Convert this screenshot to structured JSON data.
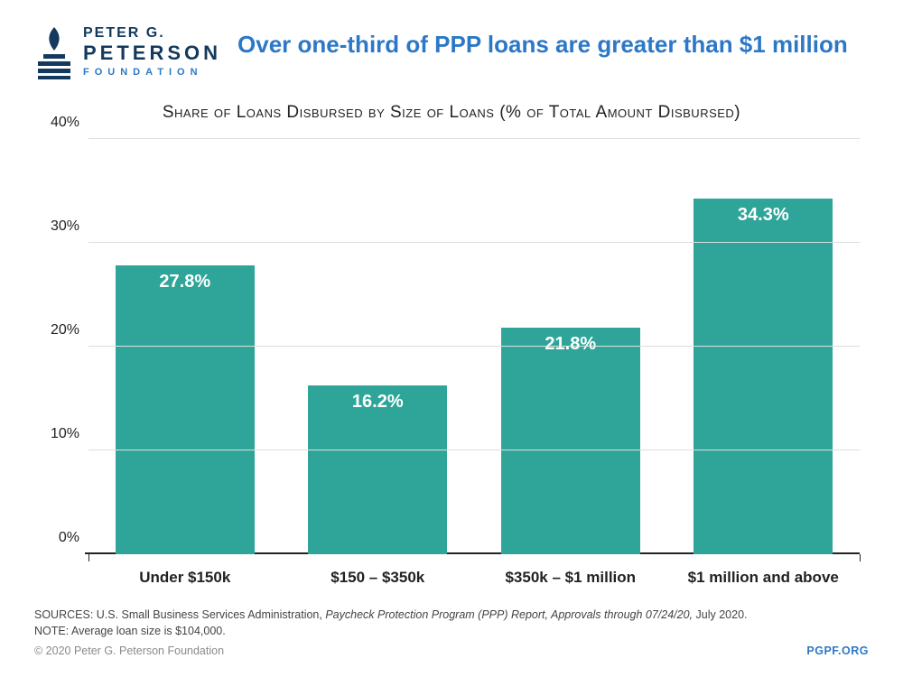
{
  "logo": {
    "line1": "PETER G.",
    "line2": "PETERSON",
    "line3": "FOUNDATION",
    "mark_color": "#133a5e",
    "flame_color": "#133a5e"
  },
  "headline": "Over one-third of PPP loans are greater than $1 million",
  "subtitle": "Share of Loans Disbursed by Size of Loans  (% of Total Amount Disbursed)",
  "chart": {
    "type": "bar",
    "categories": [
      "Under $150k",
      "$150 – $350k",
      "$350k – $1 million",
      "$1 million and above"
    ],
    "values": [
      27.8,
      16.2,
      21.8,
      34.3
    ],
    "value_labels": [
      "27.8%",
      "16.2%",
      "21.8%",
      "34.3%"
    ],
    "bar_color": "#2fa59a",
    "value_label_color": "#ffffff",
    "value_label_fontsize": 20,
    "ylim": [
      0,
      40
    ],
    "yticks": [
      0,
      10,
      20,
      30,
      40
    ],
    "ytick_labels": [
      "0%",
      "10%",
      "20%",
      "30%",
      "40%"
    ],
    "grid_color": "#dddddd",
    "baseline_color": "#222222",
    "background_color": "#ffffff",
    "bar_width_pct": 82,
    "category_fontsize": 17,
    "tick_fontsize": 16
  },
  "footer": {
    "sources_label": "SOURCES:",
    "sources_text_plain": " U.S. Small Business Services Administration, ",
    "sources_text_ital": "Paycheck Protection Program (PPP) Report, Approvals through 07/24/20,",
    "sources_text_tail": " July 2020.",
    "note_label": "NOTE:",
    "note_text": " Average loan size is $104,000.",
    "copyright": "© 2020 Peter G. Peterson Foundation",
    "site": "PGPF.ORG"
  },
  "colors": {
    "headline": "#2d78c6",
    "logo_dark": "#133a5e",
    "text": "#222222"
  }
}
